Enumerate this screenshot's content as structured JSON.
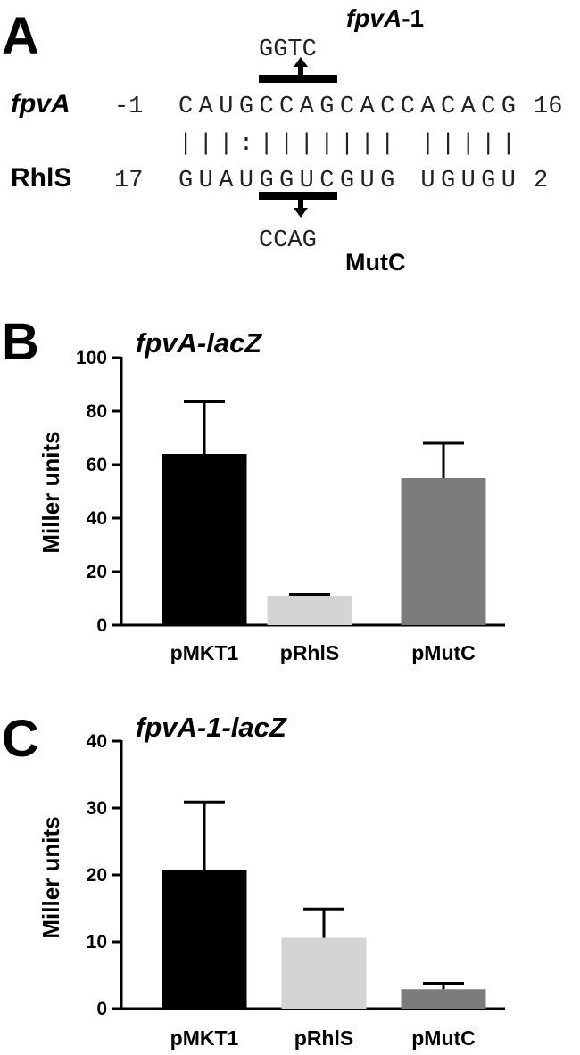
{
  "panel_a": {
    "letter": "A",
    "top_mutant_name": "fpvA",
    "top_mutant_suffix": "-1",
    "top_substitution": "GGTC",
    "fpva_label": "fpvA",
    "fpva_start": "-1",
    "fpva_sequence": "CAUGCCAGCACCACACG",
    "fpva_end": "16",
    "pairing": "|||:|||||||  |||||",
    "rhls_label": "RhlS",
    "rhls_start": "17",
    "rhls_sequence": "GUAUGGUCGUG UGUGU",
    "rhls_end": "2",
    "bottom_substitution": "CCAG",
    "bottom_mutant_name": "MutC"
  },
  "panel_b_letter": "B",
  "panel_c_letter": "C",
  "chart_data": [
    {
      "type": "bar",
      "title": "fpvA-lacZ",
      "ylabel": "Miller units",
      "xlabel": "",
      "categories": [
        "pMKT1",
        "pRhlS",
        "pMutC"
      ],
      "values": [
        64,
        11,
        55
      ],
      "errors": [
        19.5,
        0.5,
        13
      ],
      "colors": [
        "#000000",
        "#d4d4d4",
        "#7b7b7b"
      ],
      "ylim": [
        0,
        100
      ],
      "yticks": [
        "0",
        "20",
        "40",
        "60",
        "80",
        "100"
      ],
      "grid": false
    },
    {
      "type": "bar",
      "title": "fpvA-1-lacZ",
      "ylabel": "Miller units",
      "xlabel": "",
      "categories": [
        "pMKT1",
        "pRhlS",
        "pMutC"
      ],
      "values": [
        20.7,
        10.6,
        2.9
      ],
      "errors": [
        10.2,
        4.3,
        0.9
      ],
      "colors": [
        "#000000",
        "#d4d4d4",
        "#7b7b7b"
      ],
      "ylim": [
        0,
        40
      ],
      "yticks": [
        "0",
        "10",
        "20",
        "30",
        "40"
      ],
      "grid": false
    }
  ]
}
